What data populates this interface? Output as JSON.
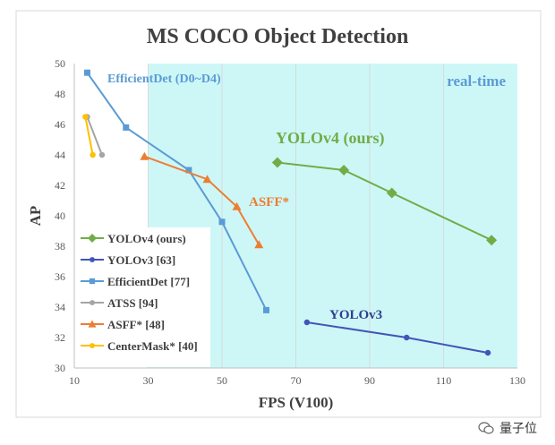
{
  "chart_data": {
    "type": "line",
    "title": "MS COCO Object Detection",
    "xlabel": "FPS (V100)",
    "ylabel": "AP",
    "xlim": [
      10,
      130
    ],
    "ylim": [
      30,
      50
    ],
    "xticks": [
      10,
      30,
      50,
      70,
      90,
      110,
      130
    ],
    "yticks": [
      30,
      32,
      34,
      36,
      38,
      40,
      42,
      44,
      46,
      48,
      50
    ],
    "grid": "vertical",
    "realtime_region": {
      "x_from": 30,
      "x_to": 130,
      "color": "#cdf7f7",
      "label": "real-time"
    },
    "legend_position": "bottom-left",
    "annotations": [
      {
        "text": "EfficientDet (D0~D4)",
        "color": "#5b9bd5"
      },
      {
        "text": "YOLOv4 (ours)",
        "color": "#70ad47"
      },
      {
        "text": "ASFF*",
        "color": "#ed7d31"
      },
      {
        "text": "YOLOv3",
        "color": "#2f3f8f"
      }
    ],
    "series": [
      {
        "name": "YOLOv4 (ours)",
        "color": "#70ad47",
        "marker": "diamond",
        "points": [
          [
            65,
            43.5
          ],
          [
            83,
            43.0
          ],
          [
            96,
            41.5
          ],
          [
            123,
            38.4
          ]
        ]
      },
      {
        "name": "YOLOv3 [63]",
        "color": "#4355b7",
        "marker": "circle",
        "points": [
          [
            73,
            33.0
          ],
          [
            100,
            32.0
          ],
          [
            122,
            31.0
          ]
        ]
      },
      {
        "name": "EfficientDet [77]",
        "color": "#5b9bd5",
        "marker": "square",
        "points": [
          [
            13.5,
            49.4
          ],
          [
            24,
            45.8
          ],
          [
            41,
            43.0
          ],
          [
            50,
            39.6
          ],
          [
            62,
            33.8
          ]
        ]
      },
      {
        "name": "ATSS [94]",
        "color": "#a5a5a5",
        "marker": "circle",
        "points": [
          [
            13.5,
            46.5
          ],
          [
            17.5,
            44.0
          ]
        ]
      },
      {
        "name": "ASFF* [48]",
        "color": "#ed7d31",
        "marker": "triangle",
        "points": [
          [
            29,
            43.9
          ],
          [
            46,
            42.4
          ],
          [
            54,
            40.6
          ],
          [
            60,
            38.1
          ]
        ]
      },
      {
        "name": "CenterMask* [40]",
        "color": "#ffc000",
        "marker": "circle",
        "points": [
          [
            13,
            46.5
          ],
          [
            15,
            44.0
          ]
        ]
      }
    ]
  },
  "watermark": {
    "text": "量子位"
  }
}
